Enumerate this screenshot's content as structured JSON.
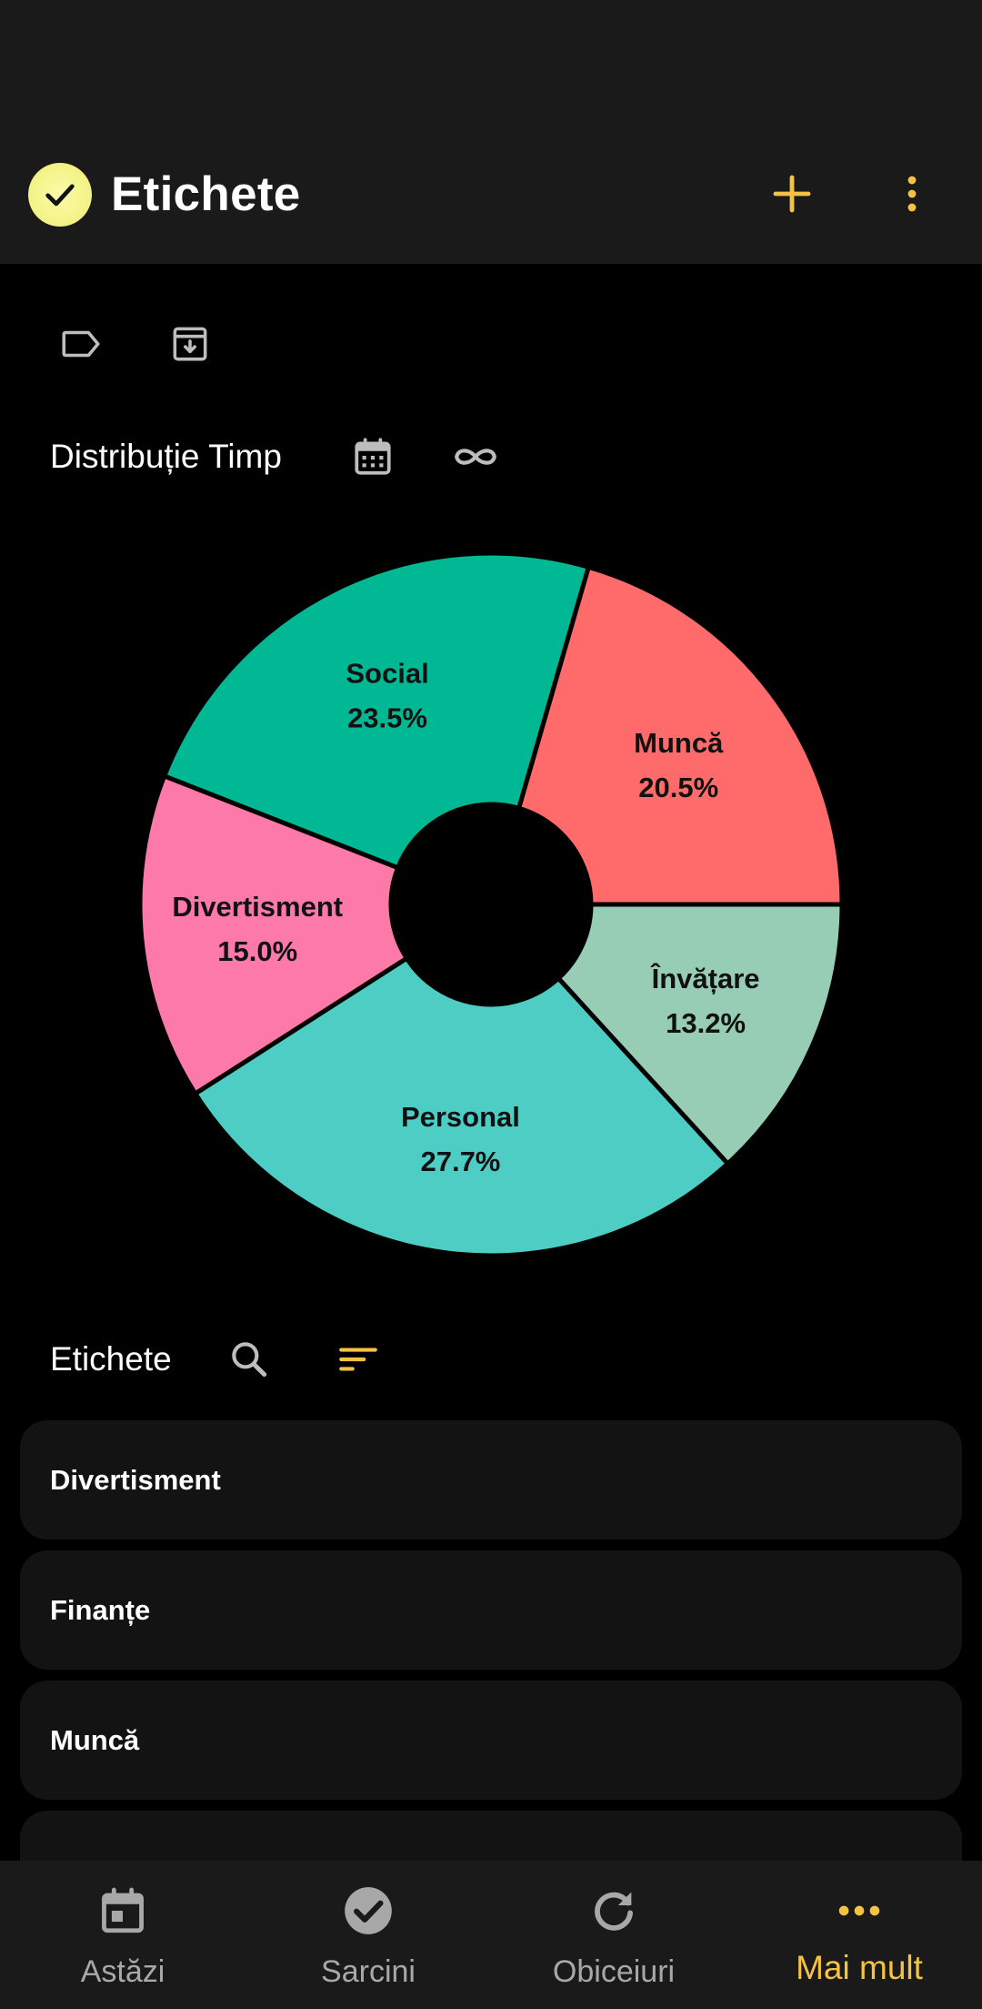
{
  "app_bar": {
    "title": "Etichete",
    "logo_icon": "check-icon",
    "add_icon": "plus-icon",
    "menu_icon": "more-vert-icon",
    "accent_color": "#f5c242"
  },
  "toolbar": {
    "icons": [
      "label-outline-icon",
      "archive-icon"
    ]
  },
  "distribution": {
    "title": "Distribuție Timp",
    "icons": [
      "calendar-icon",
      "infinity-icon"
    ]
  },
  "chart_data": {
    "type": "pie",
    "donut": true,
    "labels": [
      "Muncă",
      "Social",
      "Divertisment",
      "Personal",
      "Învățare"
    ],
    "values": [
      20.5,
      23.5,
      15.0,
      27.7,
      13.2
    ],
    "value_labels": [
      "20.5%",
      "23.5%",
      "15.0%",
      "27.7%",
      "13.2%"
    ],
    "colors": [
      "#ff6b6b",
      "#00b894",
      "#fd79a8",
      "#4ecdc4",
      "#96cdb4"
    ]
  },
  "tags_section": {
    "title": "Etichete",
    "icons": [
      "search-icon",
      "sort-icon"
    ]
  },
  "tags_list": [
    {
      "label": "Divertisment"
    },
    {
      "label": "Finanțe"
    },
    {
      "label": "Muncă"
    },
    {
      "label": ""
    }
  ],
  "bottom_nav": [
    {
      "label": "Astăzi",
      "icon": "calendar-today-icon",
      "active": false
    },
    {
      "label": "Sarcini",
      "icon": "check-circle-icon",
      "active": false
    },
    {
      "label": "Obiceiuri",
      "icon": "refresh-icon",
      "active": false
    },
    {
      "label": "Mai mult",
      "icon": "more-horiz-icon",
      "active": true
    }
  ]
}
